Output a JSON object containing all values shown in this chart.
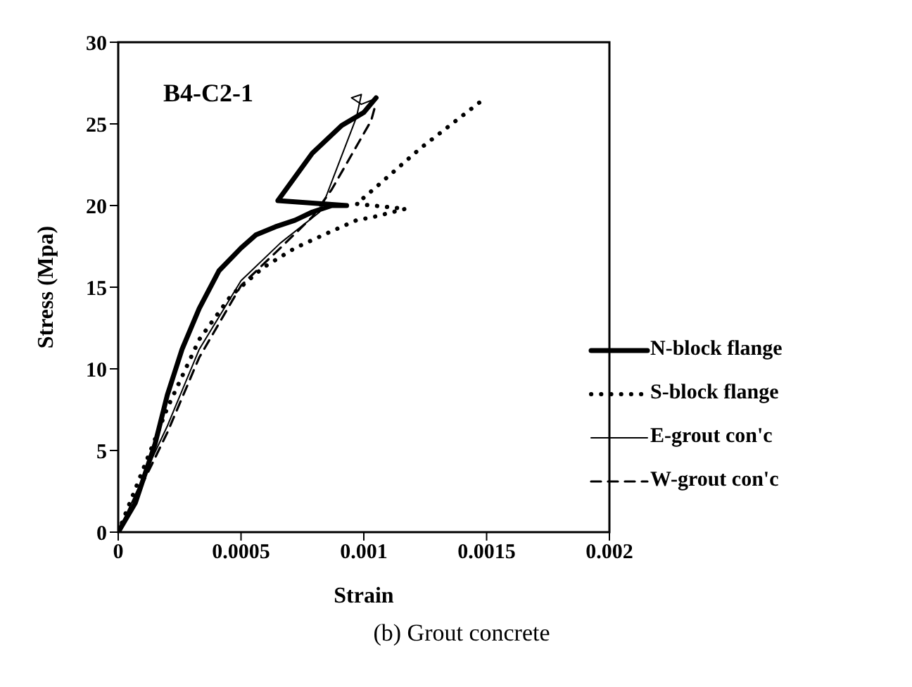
{
  "chart_data": {
    "type": "line",
    "xlabel": "Strain",
    "ylabel": "Stress (Mpa)",
    "annotations": [
      "B4-C2-1",
      "(b) Grout concrete"
    ],
    "xlim": [
      0,
      0.002
    ],
    "xticks": [
      0,
      0.0005,
      0.001,
      0.0015,
      0.002
    ],
    "ylim": [
      0,
      30
    ],
    "yticks": [
      0,
      5,
      10,
      15,
      20,
      25,
      30
    ],
    "grid": false,
    "legend": "right",
    "marker": "none",
    "series": [
      {
        "name": "N-block flange",
        "color": "#000000",
        "line_style": "solid",
        "x": [
          0,
          7e-05,
          0.00015,
          0.0002,
          0.00026,
          0.00033,
          0.00041,
          0.0005,
          0.00056,
          0.00064,
          0.00072,
          0.00079,
          0.00087,
          0.00093,
          0.00065,
          0.00079,
          0.00091,
          0.001,
          0.00105
        ],
        "values": [
          0,
          1.8,
          5.4,
          8.4,
          11.2,
          13.7,
          16.0,
          17.4,
          18.2,
          18.7,
          19.1,
          19.6,
          20.0,
          20.0,
          20.3,
          23.2,
          24.9,
          25.7,
          26.6
        ]
      },
      {
        "name": "S-block flange",
        "color": "#000000",
        "line_style": "dotted",
        "x": [
          0,
          0.0001,
          0.0002,
          0.00033,
          0.00046,
          0.00059,
          0.00072,
          0.00085,
          0.00097,
          0.00104,
          0.00117,
          0.00097,
          0.00104,
          0.00123,
          0.00147
        ],
        "values": [
          0,
          3.8,
          7.6,
          11.8,
          14.5,
          16.2,
          17.4,
          18.3,
          19.1,
          19.3,
          19.8,
          20.1,
          21.0,
          23.5,
          26.3
        ]
      },
      {
        "name": "E-grout con'c",
        "color": "#000000",
        "line_style": "solid",
        "x": [
          0,
          0.0001,
          0.0002,
          0.00033,
          0.0005,
          0.00066,
          0.00082,
          0.00085,
          0.00097,
          0.00099,
          0.00095,
          0.00099,
          0.00104
        ],
        "values": [
          0,
          3.3,
          6.5,
          11.2,
          15.4,
          17.7,
          19.6,
          20.7,
          25.4,
          26.8,
          26.6,
          26.2,
          26.5
        ]
      },
      {
        "name": "W-grout con'c",
        "color": "#000000",
        "line_style": "dashed",
        "x": [
          0,
          0.0001,
          0.0002,
          0.00033,
          0.0005,
          0.00066,
          0.00079,
          0.00087,
          0.00103,
          0.00105
        ],
        "values": [
          0,
          3.0,
          6.1,
          10.7,
          15.1,
          17.4,
          19.3,
          21.0,
          25.2,
          26.3
        ]
      }
    ]
  }
}
